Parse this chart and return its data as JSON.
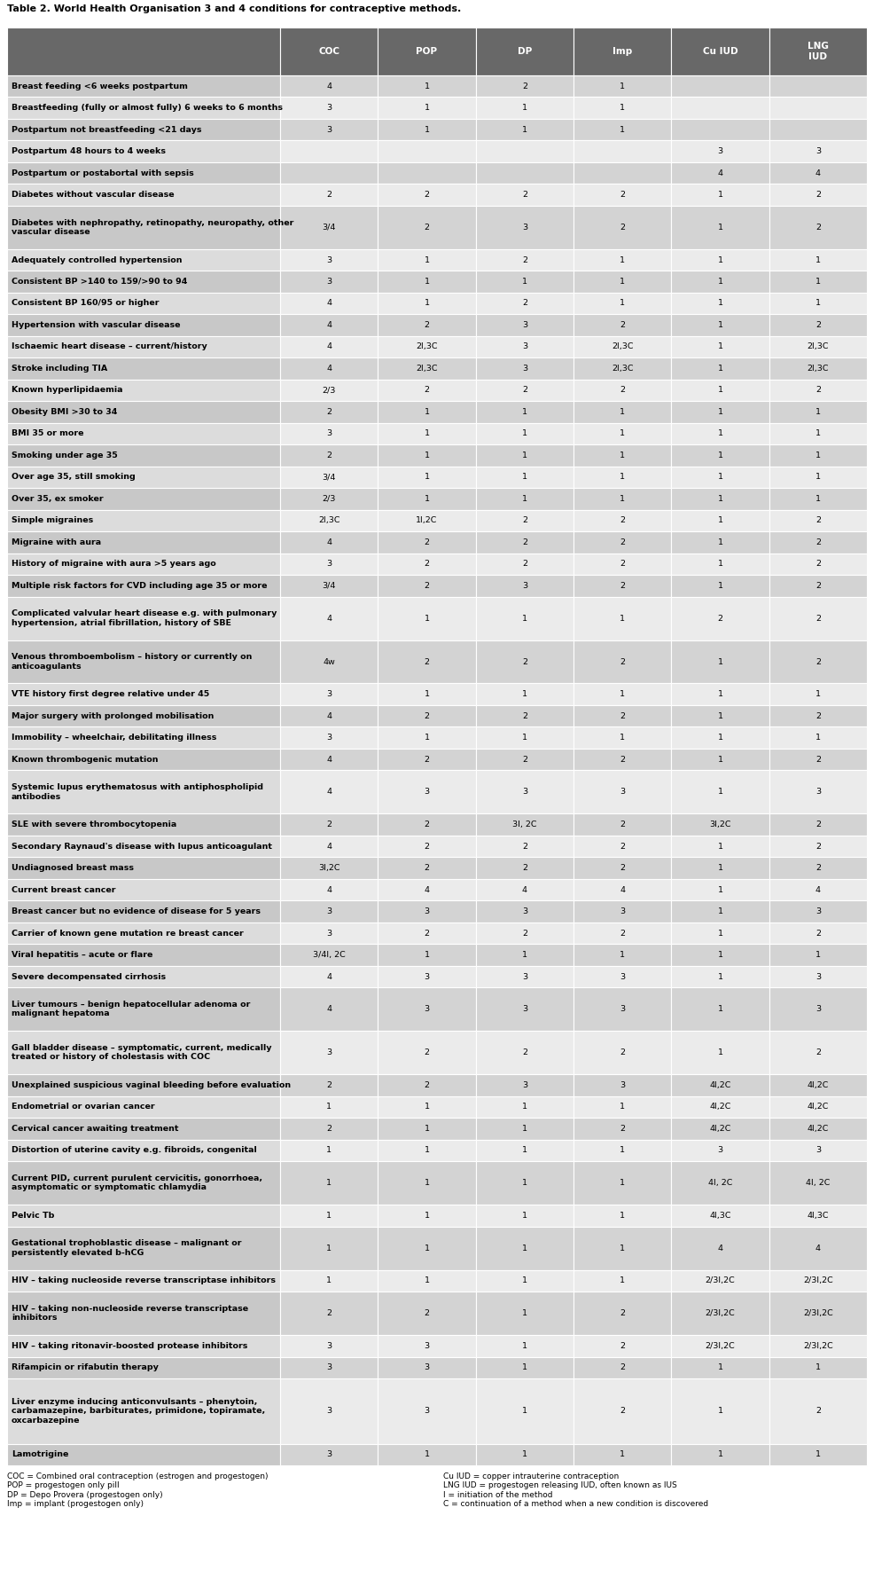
{
  "title": "Table 2. World Health Organisation 3 and 4 conditions for contraceptive methods.",
  "headers": [
    "COC",
    "POP",
    "DP",
    "Imp",
    "Cu IUD",
    "LNG\nIUD"
  ],
  "rows": [
    [
      "Breast feeding <6 weeks postpartum",
      "4",
      "1",
      "2",
      "1",
      "",
      ""
    ],
    [
      "Breastfeeding (fully or almost fully) 6 weeks to 6 months",
      "3",
      "1",
      "1",
      "1",
      "",
      ""
    ],
    [
      "Postpartum not breastfeeding <21 days",
      "3",
      "1",
      "1",
      "1",
      "",
      ""
    ],
    [
      "Postpartum 48 hours to 4 weeks",
      "",
      "",
      "",
      "",
      "3",
      "3"
    ],
    [
      "Postpartum or postabortal with sepsis",
      "",
      "",
      "",
      "",
      "4",
      "4"
    ],
    [
      "Diabetes without vascular disease",
      "2",
      "2",
      "2",
      "2",
      "1",
      "2"
    ],
    [
      "Diabetes with nephropathy, retinopathy, neuropathy, other\nvascular disease",
      "3/4",
      "2",
      "3",
      "2",
      "1",
      "2"
    ],
    [
      "Adequately controlled hypertension",
      "3",
      "1",
      "2",
      "1",
      "1",
      "1"
    ],
    [
      "Consistent BP >140 to 159/>90 to 94",
      "3",
      "1",
      "1",
      "1",
      "1",
      "1"
    ],
    [
      "Consistent BP 160/95 or higher",
      "4",
      "1",
      "2",
      "1",
      "1",
      "1"
    ],
    [
      "Hypertension with vascular disease",
      "4",
      "2",
      "3",
      "2",
      "1",
      "2"
    ],
    [
      "Ischaemic heart disease – current/history",
      "4",
      "2I,3C",
      "3",
      "2I,3C",
      "1",
      "2I,3C"
    ],
    [
      "Stroke including TIA",
      "4",
      "2I,3C",
      "3",
      "2I,3C",
      "1",
      "2I,3C"
    ],
    [
      "Known hyperlipidaemia",
      "2/3",
      "2",
      "2",
      "2",
      "1",
      "2"
    ],
    [
      "Obesity BMI >30 to 34",
      "2",
      "1",
      "1",
      "1",
      "1",
      "1"
    ],
    [
      "BMI 35 or more",
      "3",
      "1",
      "1",
      "1",
      "1",
      "1"
    ],
    [
      "Smoking under age 35",
      "2",
      "1",
      "1",
      "1",
      "1",
      "1"
    ],
    [
      "Over age 35, still smoking",
      "3/4",
      "1",
      "1",
      "1",
      "1",
      "1"
    ],
    [
      "Over 35, ex smoker",
      "2/3",
      "1",
      "1",
      "1",
      "1",
      "1"
    ],
    [
      "Simple migraines",
      "2I,3C",
      "1I,2C",
      "2",
      "2",
      "1",
      "2"
    ],
    [
      "Migraine with aura",
      "4",
      "2",
      "2",
      "2",
      "1",
      "2"
    ],
    [
      "History of migraine with aura >5 years ago",
      "3",
      "2",
      "2",
      "2",
      "1",
      "2"
    ],
    [
      "Multiple risk factors for CVD including age 35 or more",
      "3/4",
      "2",
      "3",
      "2",
      "1",
      "2"
    ],
    [
      "Complicated valvular heart disease e.g. with pulmonary\nhypertension, atrial fibrillation, history of SBE",
      "4",
      "1",
      "1",
      "1",
      "2",
      "2"
    ],
    [
      "Venous thromboembolism – history or currently on\nanticoagulants",
      "4w",
      "2",
      "2",
      "2",
      "1",
      "2"
    ],
    [
      "VTE history first degree relative under 45",
      "3",
      "1",
      "1",
      "1",
      "1",
      "1"
    ],
    [
      "Major surgery with prolonged mobilisation",
      "4",
      "2",
      "2",
      "2",
      "1",
      "2"
    ],
    [
      "Immobility – wheelchair, debilitating illness",
      "3",
      "1",
      "1",
      "1",
      "1",
      "1"
    ],
    [
      "Known thrombogenic mutation",
      "4",
      "2",
      "2",
      "2",
      "1",
      "2"
    ],
    [
      "Systemic lupus erythematosus with antiphospholipid\nantibodies",
      "4",
      "3",
      "3",
      "3",
      "1",
      "3"
    ],
    [
      "SLE with severe thrombocytopenia",
      "2",
      "2",
      "3I, 2C",
      "2",
      "3I,2C",
      "2"
    ],
    [
      "Secondary Raynaud's disease with lupus anticoagulant",
      "4",
      "2",
      "2",
      "2",
      "1",
      "2"
    ],
    [
      "Undiagnosed breast mass",
      "3I,2C",
      "2",
      "2",
      "2",
      "1",
      "2"
    ],
    [
      "Current breast cancer",
      "4",
      "4",
      "4",
      "4",
      "1",
      "4"
    ],
    [
      "Breast cancer but no evidence of disease for 5 years",
      "3",
      "3",
      "3",
      "3",
      "1",
      "3"
    ],
    [
      "Carrier of known gene mutation re breast cancer",
      "3",
      "2",
      "2",
      "2",
      "1",
      "2"
    ],
    [
      "Viral hepatitis – acute or flare",
      "3/4I, 2C",
      "1",
      "1",
      "1",
      "1",
      "1"
    ],
    [
      "Severe decompensated cirrhosis",
      "4",
      "3",
      "3",
      "3",
      "1",
      "3"
    ],
    [
      "Liver tumours – benign hepatocellular adenoma or\nmalignant hepatoma",
      "4",
      "3",
      "3",
      "3",
      "1",
      "3"
    ],
    [
      "Gall bladder disease – symptomatic, current, medically\ntreated or history of cholestasis with COC",
      "3",
      "2",
      "2",
      "2",
      "1",
      "2"
    ],
    [
      "Unexplained suspicious vaginal bleeding before evaluation",
      "2",
      "2",
      "3",
      "3",
      "4I,2C",
      "4I,2C"
    ],
    [
      "Endometrial or ovarian cancer",
      "1",
      "1",
      "1",
      "1",
      "4I,2C",
      "4I,2C"
    ],
    [
      "Cervical cancer awaiting treatment",
      "2",
      "1",
      "1",
      "2",
      "4I,2C",
      "4I,2C"
    ],
    [
      "Distortion of uterine cavity e.g. fibroids, congenital",
      "1",
      "1",
      "1",
      "1",
      "3",
      "3"
    ],
    [
      "Current PID, current purulent cervicitis, gonorrhoea,\nasymptomatic or symptomatic chlamydia",
      "1",
      "1",
      "1",
      "1",
      "4I, 2C",
      "4I, 2C"
    ],
    [
      "Pelvic Tb",
      "1",
      "1",
      "1",
      "1",
      "4I,3C",
      "4I,3C"
    ],
    [
      "Gestational trophoblastic disease – malignant or\npersistently elevated b-hCG",
      "1",
      "1",
      "1",
      "1",
      "4",
      "4"
    ],
    [
      "HIV – taking nucleoside reverse transcriptase inhibitors",
      "1",
      "1",
      "1",
      "1",
      "2/3I,2C",
      "2/3I,2C"
    ],
    [
      "HIV – taking non-nucleoside reverse transcriptase\ninhibitors",
      "2",
      "2",
      "1",
      "2",
      "2/3I,2C",
      "2/3I,2C"
    ],
    [
      "HIV – taking ritonavir-boosted protease inhibitors",
      "3",
      "3",
      "1",
      "2",
      "2/3I,2C",
      "2/3I,2C"
    ],
    [
      "Rifampicin or rifabutin therapy",
      "3",
      "3",
      "1",
      "2",
      "1",
      "1"
    ],
    [
      "Liver enzyme inducing anticonvulsants – phenytoin,\ncarbamazepine, barbiturates, primidone, topiramate,\noxcarbazepine",
      "3",
      "3",
      "1",
      "2",
      "1",
      "2"
    ],
    [
      "Lamotrigine",
      "3",
      "1",
      "1",
      "1",
      "1",
      "1"
    ]
  ],
  "footnote_left": "COC = Combined oral contraception (estrogen and progestogen)\nPOP = progestogen only pill\nDP = Depo Provera (progestogen only)\nImp = implant (progestogen only)",
  "footnote_right": "Cu IUD = copper intrauterine contraception\nLNG IUD = progestogen releasing IUD, often known as IUS\nI = initiation of the method\nC = continuation of a method when a new condition is discovered",
  "header_bg": "#686868",
  "header_text": "#ffffff",
  "row_bg_light": "#ebebeb",
  "row_bg_dark": "#d3d3d3",
  "label_col_bg": "#c8c8c8",
  "border_color": "#ffffff",
  "title_color": "#000000"
}
